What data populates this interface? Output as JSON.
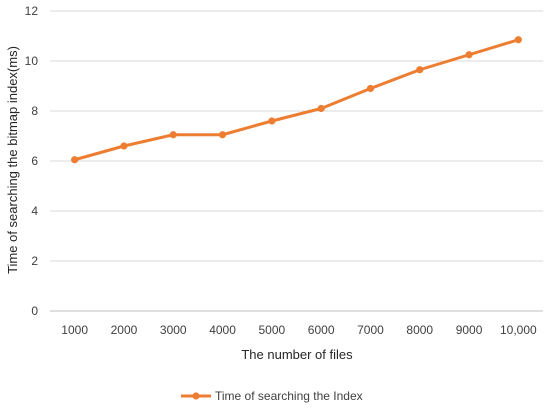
{
  "chart_data": {
    "type": "line",
    "title": "",
    "xlabel": "The number of  files",
    "ylabel": "Time of searching the bitmap index(ms)",
    "categories": [
      "1000",
      "2000",
      "3000",
      "4000",
      "5000",
      "6000",
      "7000",
      "8000",
      "9000",
      "10,000"
    ],
    "series": [
      {
        "name": "Time of searching the Index",
        "values": [
          6.05,
          6.6,
          7.05,
          7.05,
          7.6,
          8.1,
          8.9,
          9.65,
          10.25,
          10.85
        ],
        "color": "#ED7D31"
      }
    ],
    "ylim": [
      0,
      12
    ],
    "yticks": [
      0,
      2,
      4,
      6,
      8,
      10,
      12
    ],
    "grid": "horizontal",
    "legend": "bottom"
  }
}
